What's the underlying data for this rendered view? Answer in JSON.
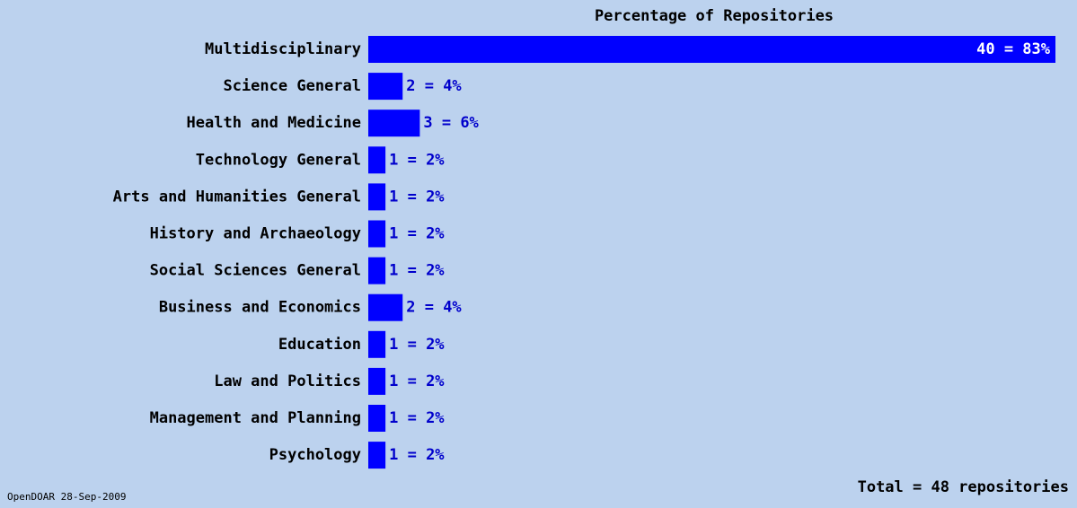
{
  "chart_data": {
    "type": "bar",
    "orientation": "horizontal",
    "title": "Percentage of Repositories",
    "categories": [
      "Multidisciplinary",
      "Science General",
      "Health and Medicine",
      "Technology General",
      "Arts and Humanities General",
      "History and Archaeology",
      "Social Sciences General",
      "Business and Economics",
      "Education",
      "Law and Politics",
      "Management and Planning",
      "Psychology"
    ],
    "values": [
      40,
      2,
      3,
      1,
      1,
      1,
      1,
      2,
      1,
      1,
      1,
      1
    ],
    "value_labels": [
      "40 = 83%",
      "2 = 4%",
      "3 = 6%",
      "1 = 2%",
      "1 = 2%",
      "1 = 2%",
      "1 = 2%",
      "2 = 4%",
      "1 = 2%",
      "1 = 2%",
      "1 = 2%",
      "1 = 2%"
    ],
    "color": "#0000ff",
    "total": "Total = 48 repositories",
    "source": "OpenDOAR 28-Sep-2009"
  }
}
